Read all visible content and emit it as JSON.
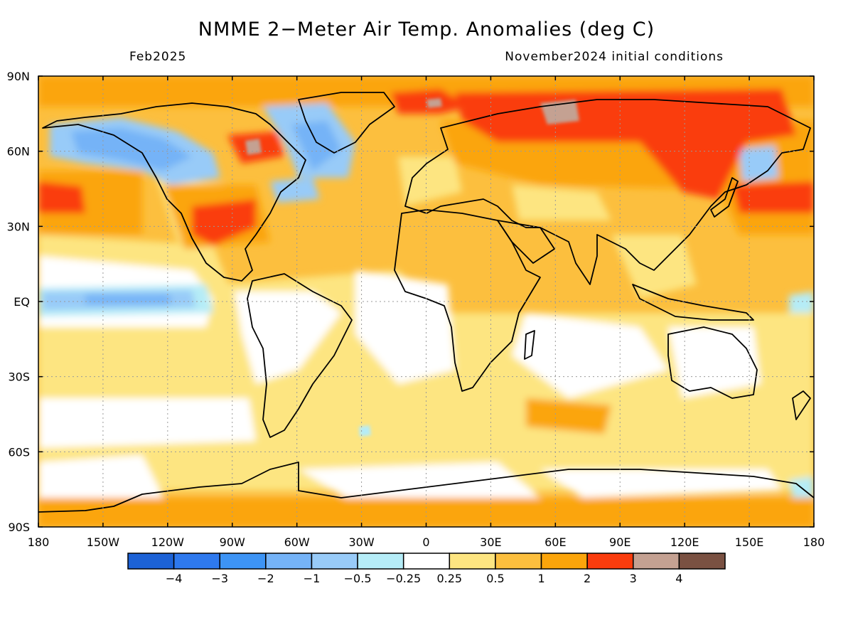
{
  "title": "NMME 2−Meter Air Temp. Anomalies (deg C)",
  "valid_month": "Feb2025",
  "initial_conditions": "November2024 initial conditions",
  "map": {
    "lon_labels": [
      "180",
      "150W",
      "120W",
      "90W",
      "60W",
      "30W",
      "0",
      "30E",
      "60E",
      "90E",
      "120E",
      "150E",
      "180"
    ],
    "lat_labels": [
      "90N",
      "60N",
      "30N",
      "EQ",
      "30S",
      "60S",
      "90S"
    ],
    "lon_range": [
      -180,
      180
    ],
    "lat_range": [
      -90,
      90
    ],
    "grid": "dotted"
  },
  "colorbar": {
    "colors": [
      "#1c62d6",
      "#2e79ee",
      "#3d94f5",
      "#75b3f7",
      "#98cbf8",
      "#b5ecf7",
      "#ffffff",
      "#fde581",
      "#fcbf3e",
      "#fba50b",
      "#fa3c0d",
      "#c4a192",
      "#7a5142"
    ],
    "labels": [
      "−4",
      "−3",
      "−2",
      "−1",
      "−0.5",
      "−0.25",
      "0.25",
      "0.5",
      "1",
      "2",
      "3",
      "4"
    ]
  }
}
